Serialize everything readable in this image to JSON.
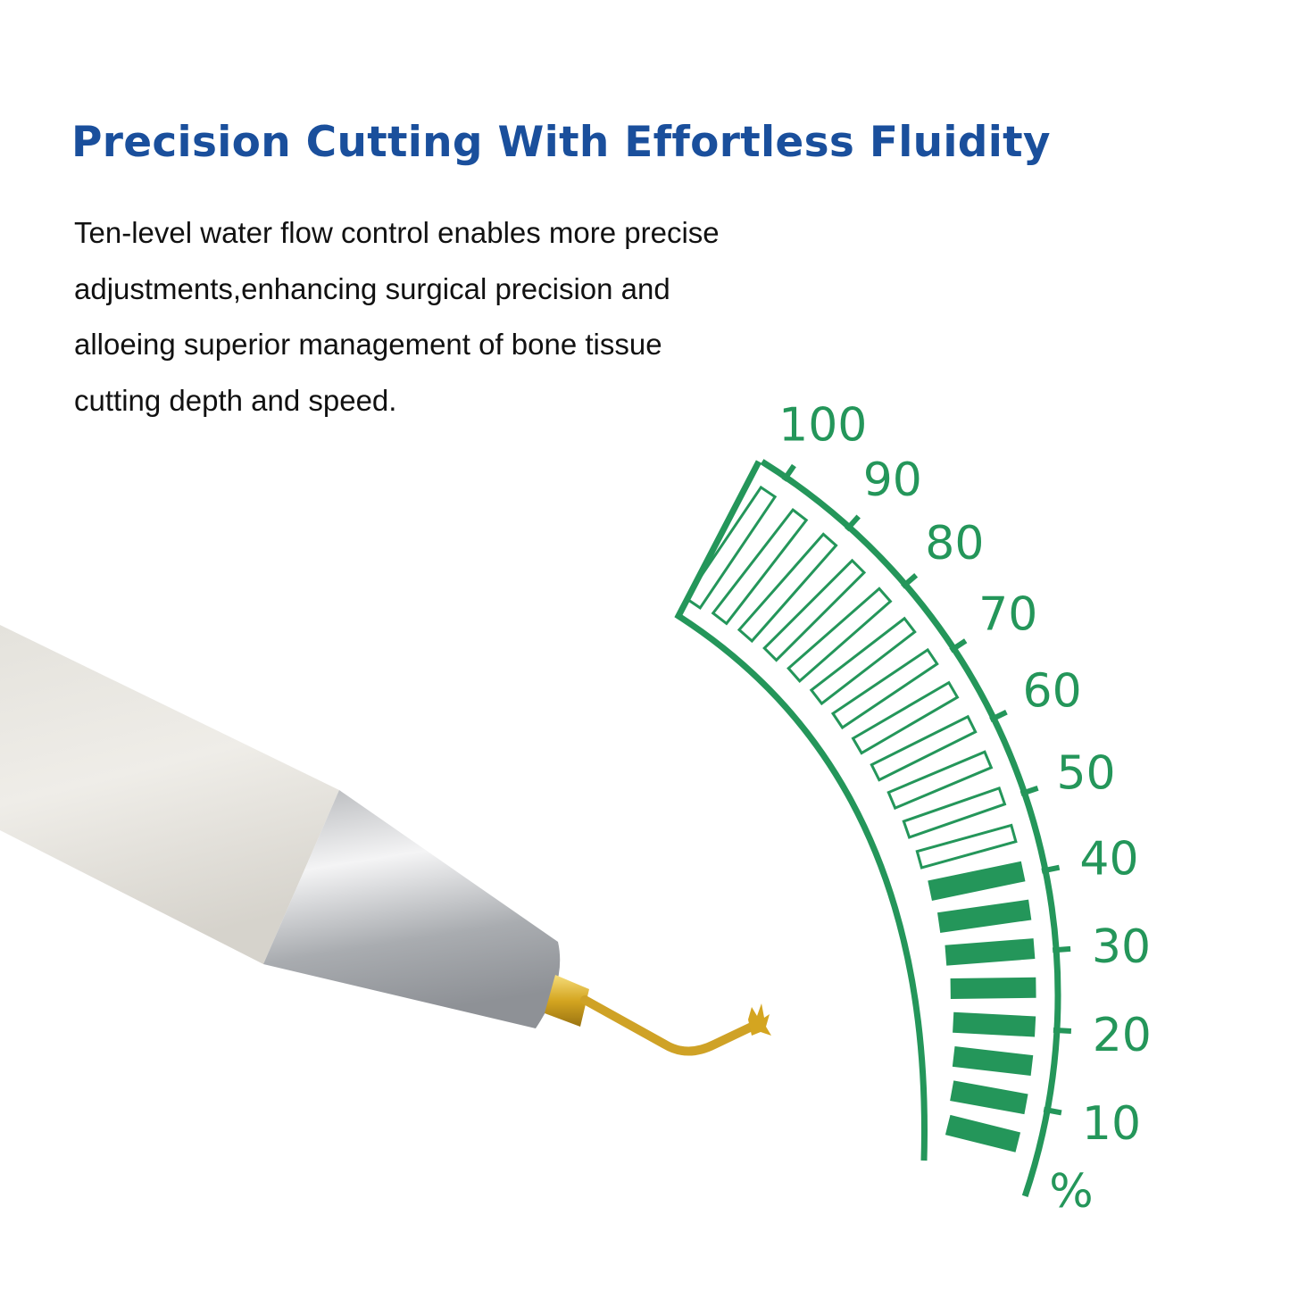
{
  "heading": "Precision Cutting With Effortless Fluidity",
  "description": [
    "Ten-level water flow control enables more precise",
    "adjustments,enhancing surgical precision and",
    "alloeing superior management of bone tissue",
    "cutting depth and speed."
  ],
  "gauge": {
    "tick_labels": [
      "10",
      "20",
      "30",
      "40",
      "50",
      "60",
      "70",
      "80",
      "90",
      "100"
    ],
    "unit": "%",
    "level_percent": 40,
    "total_segments": 20,
    "filled_segments": 8,
    "color": "#24965a"
  },
  "colors": {
    "heading": "#1a4f9c",
    "text": "#111111"
  }
}
